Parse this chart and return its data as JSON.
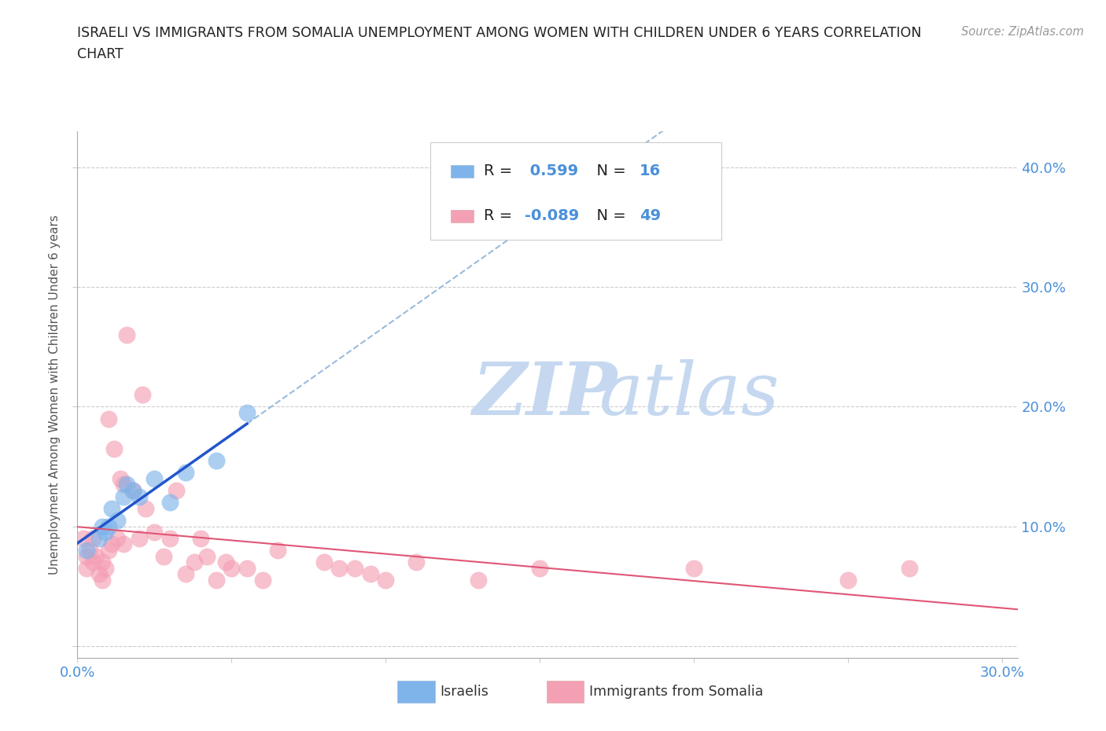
{
  "title_line1": "ISRAELI VS IMMIGRANTS FROM SOMALIA UNEMPLOYMENT AMONG WOMEN WITH CHILDREN UNDER 6 YEARS CORRELATION",
  "title_line2": "CHART",
  "source": "Source: ZipAtlas.com",
  "ylabel": "Unemployment Among Women with Children Under 6 years",
  "xlim": [
    0.0,
    0.305
  ],
  "ylim": [
    -0.01,
    0.43
  ],
  "x_ticks": [
    0.0,
    0.05,
    0.1,
    0.15,
    0.2,
    0.25,
    0.3
  ],
  "y_ticks": [
    0.0,
    0.1,
    0.2,
    0.3,
    0.4
  ],
  "israeli_color": "#7eb4ea",
  "somalia_color": "#f4a0b4",
  "israeli_R": 0.599,
  "israeli_N": 16,
  "somalia_R": -0.089,
  "somalia_N": 49,
  "background_color": "#ffffff",
  "watermark_zip": "ZIP",
  "watermark_atlas": "atlas",
  "watermark_color_zip": "#c5d8f0",
  "watermark_color_atlas": "#c5d8f0",
  "grid_color": "#cccccc",
  "trend_israeli_color": "#2255cc",
  "trend_somalia_color": "#e05575",
  "dash_color": "#99bbdd",
  "israeli_x": [
    0.003,
    0.007,
    0.008,
    0.009,
    0.01,
    0.011,
    0.013,
    0.015,
    0.016,
    0.018,
    0.02,
    0.025,
    0.03,
    0.035,
    0.045,
    0.055
  ],
  "israeli_y": [
    0.08,
    0.09,
    0.1,
    0.095,
    0.1,
    0.115,
    0.105,
    0.125,
    0.135,
    0.13,
    0.125,
    0.14,
    0.12,
    0.145,
    0.155,
    0.195
  ],
  "somalia_x": [
    0.002,
    0.003,
    0.003,
    0.004,
    0.005,
    0.005,
    0.006,
    0.007,
    0.008,
    0.008,
    0.009,
    0.01,
    0.01,
    0.011,
    0.012,
    0.013,
    0.014,
    0.015,
    0.015,
    0.016,
    0.018,
    0.02,
    0.021,
    0.022,
    0.025,
    0.028,
    0.03,
    0.032,
    0.035,
    0.038,
    0.04,
    0.042,
    0.045,
    0.048,
    0.05,
    0.055,
    0.06,
    0.065,
    0.08,
    0.085,
    0.09,
    0.095,
    0.1,
    0.11,
    0.13,
    0.15,
    0.2,
    0.25,
    0.27
  ],
  "somalia_y": [
    0.09,
    0.075,
    0.065,
    0.08,
    0.07,
    0.09,
    0.075,
    0.06,
    0.07,
    0.055,
    0.065,
    0.19,
    0.08,
    0.085,
    0.165,
    0.09,
    0.14,
    0.085,
    0.135,
    0.26,
    0.13,
    0.09,
    0.21,
    0.115,
    0.095,
    0.075,
    0.09,
    0.13,
    0.06,
    0.07,
    0.09,
    0.075,
    0.055,
    0.07,
    0.065,
    0.065,
    0.055,
    0.08,
    0.07,
    0.065,
    0.065,
    0.06,
    0.055,
    0.07,
    0.055,
    0.065,
    0.065,
    0.055,
    0.065
  ]
}
